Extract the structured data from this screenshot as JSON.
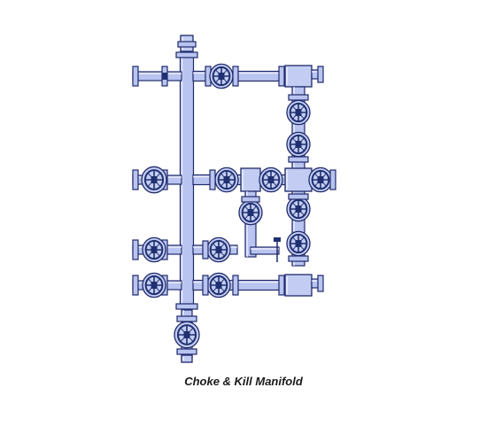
{
  "diagram": {
    "caption": "Choke & Kill Manifold",
    "colors": {
      "pipe_fill": "#b9c4f0",
      "pipe_stroke": "#1f2a6a",
      "valve_fill": "#c3cdf3",
      "handwheel": "#203070",
      "background": "#ffffff"
    }
  }
}
